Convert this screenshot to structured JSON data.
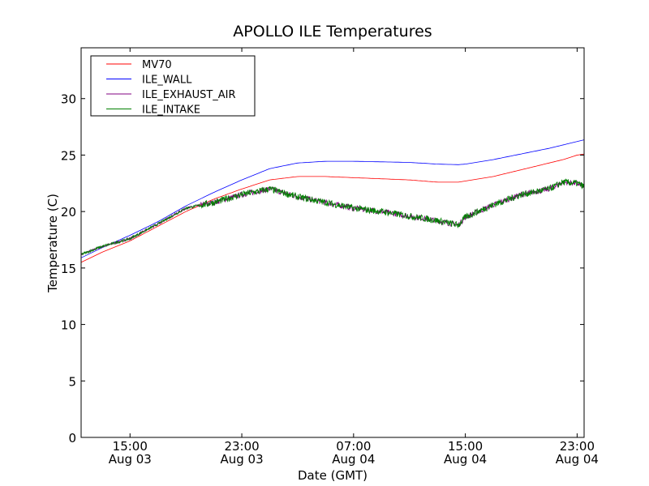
{
  "chart_data": {
    "type": "line",
    "title": "APOLLO ILE Temperatures",
    "xlabel": "Date (GMT)",
    "ylabel": "Temperature (C)",
    "x_units": "hours since Aug 03 00:00 GMT",
    "xlim": [
      11.5,
      47.5
    ],
    "ylim": [
      0,
      34.5
    ],
    "yticks": [
      0,
      5,
      10,
      15,
      20,
      25,
      30
    ],
    "xticks": [
      {
        "x": 15,
        "time": "15:00",
        "date": "Aug 03"
      },
      {
        "x": 23,
        "time": "23:00",
        "date": "Aug 03"
      },
      {
        "x": 31,
        "time": "07:00",
        "date": "Aug 04"
      },
      {
        "x": 39,
        "time": "15:00",
        "date": "Aug 04"
      },
      {
        "x": 47,
        "time": "23:00",
        "date": "Aug 04"
      }
    ],
    "legend_position": "top-left",
    "x": [
      11.5,
      13,
      15,
      17,
      19,
      21,
      23,
      25,
      27,
      29,
      31,
      33,
      35,
      37,
      38.5,
      39,
      41,
      43,
      45,
      46,
      47,
      47.5
    ],
    "series": [
      {
        "name": "MV70",
        "color": "#ff0000",
        "noise": 0,
        "values": [
          15.5,
          16.4,
          17.4,
          18.7,
          20.0,
          21.1,
          22.0,
          22.8,
          23.1,
          23.1,
          23.0,
          22.9,
          22.8,
          22.6,
          22.6,
          22.7,
          23.1,
          23.7,
          24.3,
          24.6,
          25.0,
          25.1
        ]
      },
      {
        "name": "ILE_WALL",
        "color": "#0000ff",
        "noise": 0,
        "values": [
          15.9,
          16.8,
          17.9,
          19.1,
          20.5,
          21.7,
          22.8,
          23.8,
          24.3,
          24.45,
          24.45,
          24.4,
          24.35,
          24.2,
          24.15,
          24.2,
          24.6,
          25.1,
          25.6,
          25.9,
          26.2,
          26.35
        ]
      },
      {
        "name": "ILE_EXHAUST_AIR",
        "color": "#800080",
        "noise": 0.25,
        "values": [
          16.2,
          16.9,
          17.6,
          18.9,
          20.3,
          20.8,
          21.5,
          22.0,
          21.3,
          20.8,
          20.3,
          20.0,
          19.6,
          19.2,
          18.8,
          19.5,
          20.6,
          21.5,
          22.0,
          22.6,
          22.5,
          22.2
        ]
      },
      {
        "name": "ILE_INTAKE",
        "color": "#008000",
        "noise": 0.3,
        "values": [
          16.2,
          16.9,
          17.6,
          18.9,
          20.3,
          20.8,
          21.5,
          22.0,
          21.3,
          20.8,
          20.3,
          20.0,
          19.6,
          19.2,
          18.8,
          19.5,
          20.6,
          21.5,
          22.0,
          22.6,
          22.5,
          22.2
        ]
      }
    ]
  }
}
